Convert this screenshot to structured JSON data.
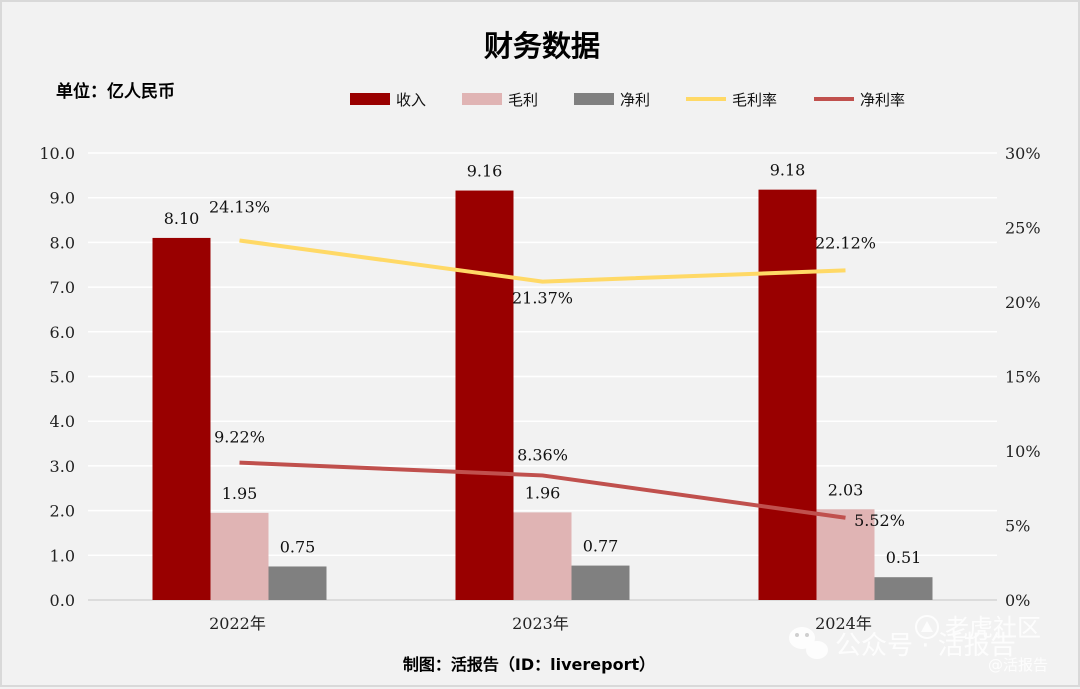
{
  "chart_data": {
    "type": "bar",
    "title": "财务数据",
    "unit_label": "单位：亿人民币",
    "credit": "制图：活报告（ID：livereport）",
    "categories": [
      "2022年",
      "2023年",
      "2024年"
    ],
    "series": [
      {
        "name": "收入",
        "kind": "bar",
        "axis": "left",
        "color": "#990000",
        "values": [
          8.1,
          9.16,
          9.18
        ],
        "labels": [
          "8.10",
          "9.16",
          "9.18"
        ]
      },
      {
        "name": "毛利",
        "kind": "bar",
        "axis": "left",
        "color": "#e0b4b4",
        "values": [
          1.95,
          1.96,
          2.03
        ],
        "labels": [
          "1.95",
          "1.96",
          "2.03"
        ]
      },
      {
        "name": "净利",
        "kind": "bar",
        "axis": "left",
        "color": "#808080",
        "values": [
          0.75,
          0.77,
          0.51
        ],
        "labels": [
          "0.75",
          "0.77",
          "0.51"
        ]
      },
      {
        "name": "毛利率",
        "kind": "line",
        "axis": "right",
        "color": "#ffd966",
        "values": [
          24.13,
          21.37,
          22.12
        ],
        "labels": [
          "24.13%",
          "21.37%",
          "22.12%"
        ]
      },
      {
        "name": "净利率",
        "kind": "line",
        "axis": "right",
        "color": "#c0504d",
        "values": [
          9.22,
          8.36,
          5.52
        ],
        "labels": [
          "9.22%",
          "8.36%",
          "5.52%"
        ]
      }
    ],
    "y_left": {
      "min": 0,
      "max": 10,
      "step": 1,
      "ticks": [
        "0.0",
        "1.0",
        "2.0",
        "3.0",
        "4.0",
        "5.0",
        "6.0",
        "7.0",
        "8.0",
        "9.0",
        "10.0"
      ]
    },
    "y_right": {
      "min": 0,
      "max": 30,
      "step": 5,
      "ticks": [
        "0%",
        "5%",
        "10%",
        "15%",
        "20%",
        "25%",
        "30%"
      ]
    },
    "grid": true,
    "legend_position": "top"
  },
  "watermark": {
    "source": "公众号 · 活报告",
    "handle": "@活报告",
    "site": "老虎社区"
  }
}
